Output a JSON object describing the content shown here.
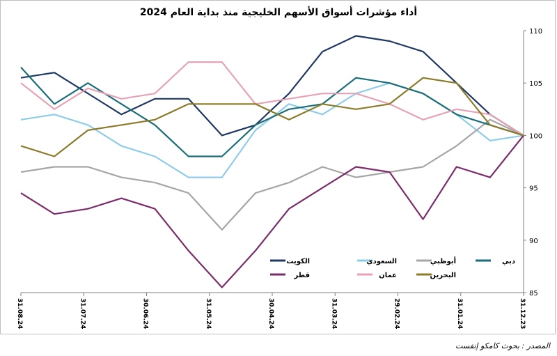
{
  "source": "المصدر : بحوث كامكو إنفست",
  "chart_data": {
    "type": "line",
    "title": "أداء مؤشرات أسواق الأسهم الخليجية منذ بداية العام 2024",
    "xlabel": "",
    "ylabel": "",
    "ylim": [
      85,
      110
    ],
    "yticks": [
      85,
      90,
      95,
      100,
      105,
      110
    ],
    "x_ticks": [
      "31.12.23",
      "31.01.24",
      "29.02.24",
      "31.03.24",
      "30.04.24",
      "31.05.24",
      "30.06.24",
      "31.07.24",
      "31.08.24"
    ],
    "x_direction": "right-to-left",
    "legend_placement": "bottom",
    "grid": false,
    "series": [
      {
        "name": "الكويت",
        "color": "#1f3864",
        "values": [
          100,
          102,
          105,
          108,
          109,
          109.5,
          108,
          104,
          101,
          100,
          103.5,
          103.5,
          102,
          104,
          106,
          105.5
        ]
      },
      {
        "name": "السعودي",
        "color": "#8fcce8",
        "values": [
          100,
          99.5,
          102,
          104,
          105,
          104,
          102,
          103,
          100.5,
          96,
          96,
          98,
          99,
          101,
          102,
          101.5
        ]
      },
      {
        "name": "أبوظبي",
        "color": "#a6a6a6",
        "values": [
          100,
          101.5,
          99,
          97,
          96.5,
          96,
          97,
          95.5,
          94.5,
          91,
          94.5,
          95.5,
          96,
          97,
          97,
          96.5
        ]
      },
      {
        "name": "دبي",
        "color": "#1a6e7a",
        "values": [
          100,
          101,
          102,
          104,
          105,
          105.5,
          103,
          102.5,
          101,
          98,
          98,
          101,
          103,
          105,
          103,
          106.5
        ]
      },
      {
        "name": "قطر",
        "color": "#7b2c6b",
        "values": [
          100,
          96,
          97,
          92,
          96.5,
          97,
          95,
          93,
          89,
          85.5,
          89,
          93,
          94,
          93,
          92.5,
          94.5
        ]
      },
      {
        "name": "عمان",
        "color": "#e6a3b6",
        "values": [
          100,
          102,
          102.5,
          101.5,
          103,
          104,
          104,
          103.5,
          103,
          107,
          107,
          104,
          103.5,
          104.5,
          102.5,
          105
        ]
      },
      {
        "name": "البحرين",
        "color": "#8c7b2a",
        "values": [
          100,
          101,
          105,
          105.5,
          103,
          102.5,
          103,
          101.5,
          103,
          103,
          103,
          101.5,
          101,
          100.5,
          98,
          99
        ]
      }
    ]
  }
}
